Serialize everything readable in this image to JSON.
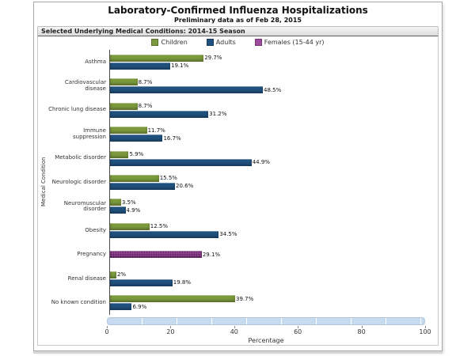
{
  "header": {
    "title": "Laboratory-Confirmed Influenza Hospitalizations",
    "subtitle": "Preliminary data as of Feb 28, 2015",
    "band": "Selected Underlying Medical Conditions: 2014-15 Season"
  },
  "chart_data": {
    "type": "bar",
    "orientation": "horizontal",
    "title": "Laboratory-Confirmed Influenza Hospitalizations",
    "subtitle": "Preliminary data as of Feb 28, 2015",
    "panel_label": "Selected Underlying Medical Conditions: 2014-15 Season",
    "categories": [
      "Asthma",
      "Cardiovascular disease",
      "Chronic lung disease",
      "Immune suppression",
      "Metabolic disorder",
      "Neurologic disorder",
      "Neuromuscular disorder",
      "Obesity",
      "Pregnancy",
      "Renal disease",
      "No known condition"
    ],
    "series": [
      {
        "name": "Children",
        "key": "children",
        "color": "#7c9a3d",
        "values": [
          29.7,
          8.7,
          8.7,
          11.7,
          5.9,
          15.5,
          3.5,
          12.5,
          null,
          2,
          39.7
        ],
        "labels": [
          "29.7%",
          "8.7%",
          "8.7%",
          "11.7%",
          "5.9%",
          "15.5%",
          "3.5%",
          "12.5%",
          null,
          "2%",
          "39.7%"
        ]
      },
      {
        "name": "Adults",
        "key": "adults",
        "color": "#20517e",
        "values": [
          19.1,
          48.5,
          31.2,
          16.7,
          44.9,
          20.6,
          4.9,
          34.5,
          null,
          19.8,
          6.9
        ],
        "labels": [
          "19.1%",
          "48.5%",
          "31.2%",
          "16.7%",
          "44.9%",
          "20.6%",
          "4.9%",
          "34.5%",
          null,
          "19.8%",
          "6.9%"
        ]
      },
      {
        "name": "Females (15-44 yr)",
        "key": "females",
        "color": "#9d4b9d",
        "pattern": "dots",
        "values": [
          null,
          null,
          null,
          null,
          null,
          null,
          null,
          null,
          29.1,
          null,
          null
        ],
        "labels": [
          null,
          null,
          null,
          null,
          null,
          null,
          null,
          null,
          "29.1%",
          null,
          null
        ]
      }
    ],
    "xlabel": "Percentage",
    "ylabel": "Medical Condition",
    "xlim": [
      0,
      100
    ],
    "xticks": [
      0,
      20,
      40,
      60,
      80,
      100
    ],
    "legend_position": "top",
    "grid": false
  }
}
